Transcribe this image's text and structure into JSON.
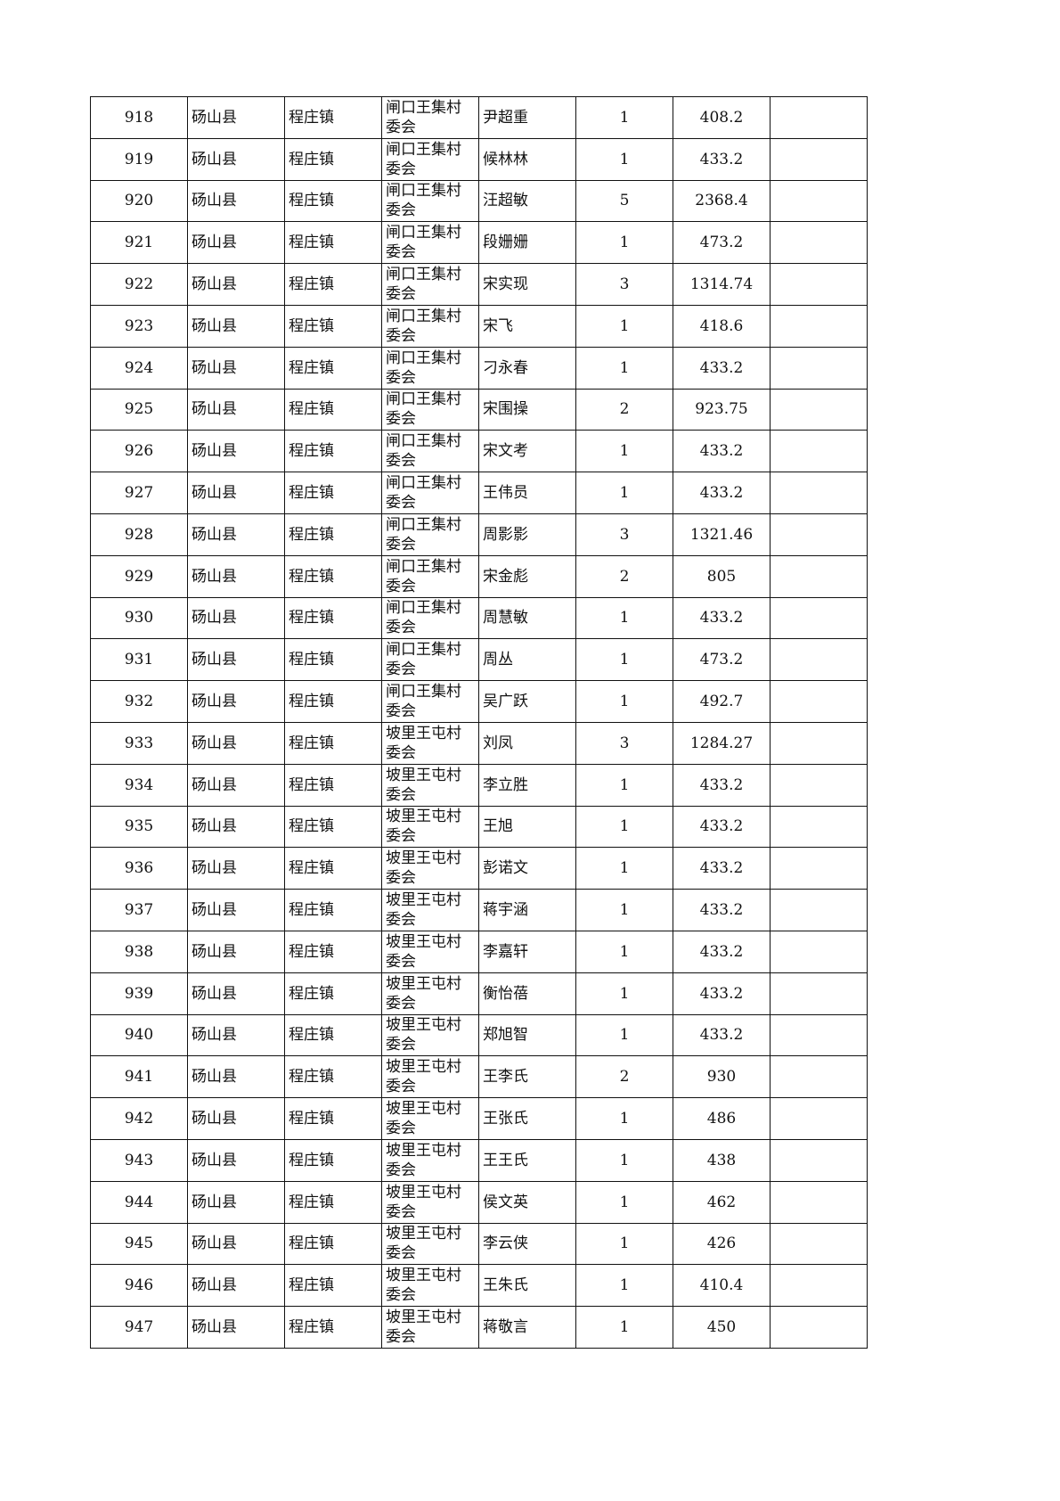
{
  "table": {
    "rows": [
      [
        "918",
        "砀山县",
        "程庄镇",
        "闸口王集村委会",
        "尹超重",
        "1",
        "408.2",
        ""
      ],
      [
        "919",
        "砀山县",
        "程庄镇",
        "闸口王集村委会",
        "候林林",
        "1",
        "433.2",
        ""
      ],
      [
        "920",
        "砀山县",
        "程庄镇",
        "闸口王集村委会",
        "汪超敏",
        "5",
        "2368.4",
        ""
      ],
      [
        "921",
        "砀山县",
        "程庄镇",
        "闸口王集村委会",
        "段姗姗",
        "1",
        "473.2",
        ""
      ],
      [
        "922",
        "砀山县",
        "程庄镇",
        "闸口王集村委会",
        "宋实现",
        "3",
        "1314.74",
        ""
      ],
      [
        "923",
        "砀山县",
        "程庄镇",
        "闸口王集村委会",
        "宋飞",
        "1",
        "418.6",
        ""
      ],
      [
        "924",
        "砀山县",
        "程庄镇",
        "闸口王集村委会",
        "刁永春",
        "1",
        "433.2",
        ""
      ],
      [
        "925",
        "砀山县",
        "程庄镇",
        "闸口王集村委会",
        "宋围操",
        "2",
        "923.75",
        ""
      ],
      [
        "926",
        "砀山县",
        "程庄镇",
        "闸口王集村委会",
        "宋文考",
        "1",
        "433.2",
        ""
      ],
      [
        "927",
        "砀山县",
        "程庄镇",
        "闸口王集村委会",
        "王伟员",
        "1",
        "433.2",
        ""
      ],
      [
        "928",
        "砀山县",
        "程庄镇",
        "闸口王集村委会",
        "周影影",
        "3",
        "1321.46",
        ""
      ],
      [
        "929",
        "砀山县",
        "程庄镇",
        "闸口王集村委会",
        "宋金彪",
        "2",
        "805",
        ""
      ],
      [
        "930",
        "砀山县",
        "程庄镇",
        "闸口王集村委会",
        "周慧敏",
        "1",
        "433.2",
        ""
      ],
      [
        "931",
        "砀山县",
        "程庄镇",
        "闸口王集村委会",
        "周丛",
        "1",
        "473.2",
        ""
      ],
      [
        "932",
        "砀山县",
        "程庄镇",
        "闸口王集村委会",
        "吴广跃",
        "1",
        "492.7",
        ""
      ],
      [
        "933",
        "砀山县",
        "程庄镇",
        "坡里王屯村委会",
        "刘凤",
        "3",
        "1284.27",
        ""
      ],
      [
        "934",
        "砀山县",
        "程庄镇",
        "坡里王屯村委会",
        "李立胜",
        "1",
        "433.2",
        ""
      ],
      [
        "935",
        "砀山县",
        "程庄镇",
        "坡里王屯村委会",
        "王旭",
        "1",
        "433.2",
        ""
      ],
      [
        "936",
        "砀山县",
        "程庄镇",
        "坡里王屯村委会",
        "彭诺文",
        "1",
        "433.2",
        ""
      ],
      [
        "937",
        "砀山县",
        "程庄镇",
        "坡里王屯村委会",
        "蒋宇涵",
        "1",
        "433.2",
        ""
      ],
      [
        "938",
        "砀山县",
        "程庄镇",
        "坡里王屯村委会",
        "李嘉轩",
        "1",
        "433.2",
        ""
      ],
      [
        "939",
        "砀山县",
        "程庄镇",
        "坡里王屯村委会",
        "衡怡蓓",
        "1",
        "433.2",
        ""
      ],
      [
        "940",
        "砀山县",
        "程庄镇",
        "坡里王屯村委会",
        "郑旭智",
        "1",
        "433.2",
        ""
      ],
      [
        "941",
        "砀山县",
        "程庄镇",
        "坡里王屯村委会",
        "王李氏",
        "2",
        "930",
        ""
      ],
      [
        "942",
        "砀山县",
        "程庄镇",
        "坡里王屯村委会",
        "王张氏",
        "1",
        "486",
        ""
      ],
      [
        "943",
        "砀山县",
        "程庄镇",
        "坡里王屯村委会",
        "王王氏",
        "1",
        "438",
        ""
      ],
      [
        "944",
        "砀山县",
        "程庄镇",
        "坡里王屯村委会",
        "侯文英",
        "1",
        "462",
        ""
      ],
      [
        "945",
        "砀山县",
        "程庄镇",
        "坡里王屯村委会",
        "李云侠",
        "1",
        "426",
        ""
      ],
      [
        "946",
        "砀山县",
        "程庄镇",
        "坡里王屯村委会",
        "王朱氏",
        "1",
        "410.4",
        ""
      ],
      [
        "947",
        "砀山县",
        "程庄镇",
        "坡里王屯村委会",
        "蒋敬言",
        "1",
        "450",
        ""
      ]
    ]
  }
}
